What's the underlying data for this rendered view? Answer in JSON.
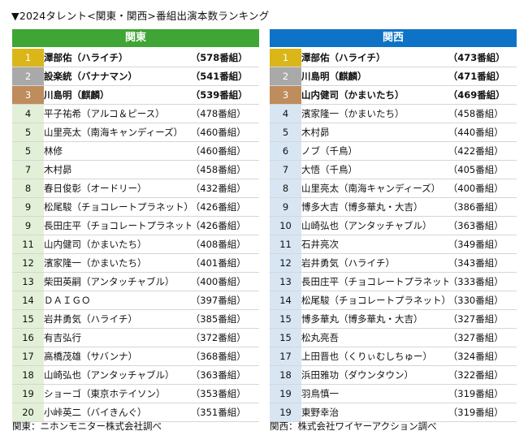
{
  "title": "▼2024タレント<関東・関西>番組出演本数ランキング",
  "kanto": {
    "header": "関東",
    "rows": [
      {
        "rank": "1",
        "name": "澤部佑（ハライチ）",
        "count": "（578番組）"
      },
      {
        "rank": "2",
        "name": "設楽統（バナナマン）",
        "count": "（541番組）"
      },
      {
        "rank": "3",
        "name": "川島明（麒麟）",
        "count": "（539番組）"
      },
      {
        "rank": "4",
        "name": "平子祐希（アルコ＆ピース）",
        "count": "（478番組）"
      },
      {
        "rank": "5",
        "name": "山里亮太（南海キャンディーズ）",
        "count": "（460番組）"
      },
      {
        "rank": "5",
        "name": "林修",
        "count": "（460番組）"
      },
      {
        "rank": "7",
        "name": "木村昴",
        "count": "（458番組）"
      },
      {
        "rank": "8",
        "name": "春日俊彰（オードリー）",
        "count": "（432番組）"
      },
      {
        "rank": "9",
        "name": "松尾駿（チョコレートプラネット）",
        "count": "（426番組）"
      },
      {
        "rank": "9",
        "name": "長田庄平（チョコレートプラネット）",
        "count": "（426番組）"
      },
      {
        "rank": "11",
        "name": "山内健司（かまいたち）",
        "count": "（408番組）"
      },
      {
        "rank": "12",
        "name": "濱家隆一（かまいたち）",
        "count": "（401番組）"
      },
      {
        "rank": "13",
        "name": "柴田英嗣（アンタッチャブル）",
        "count": "（400番組）"
      },
      {
        "rank": "14",
        "name": "ＤＡＩＧＯ",
        "count": "（397番組）"
      },
      {
        "rank": "15",
        "name": "岩井勇気（ハライチ）",
        "count": "（385番組）"
      },
      {
        "rank": "16",
        "name": "有吉弘行",
        "count": "（372番組）"
      },
      {
        "rank": "17",
        "name": "高橋茂雄（サバンナ）",
        "count": "（368番組）"
      },
      {
        "rank": "18",
        "name": "山崎弘也（アンタッチャブル）",
        "count": "（363番組）"
      },
      {
        "rank": "19",
        "name": "ショーゴ（東京ホテイソン）",
        "count": "（353番組）"
      },
      {
        "rank": "20",
        "name": "小峠英二（バイきんぐ）",
        "count": "（351番組）"
      }
    ],
    "note": "関東：ニホンモニター株式会社調べ"
  },
  "kansai": {
    "header": "関西",
    "rows": [
      {
        "rank": "1",
        "name": "澤部佑（ハライチ）",
        "count": "（473番組）"
      },
      {
        "rank": "2",
        "name": "川島明（麒麟）",
        "count": "（471番組）"
      },
      {
        "rank": "3",
        "name": "山内健司（かまいたち）",
        "count": "（469番組）"
      },
      {
        "rank": "4",
        "name": "濱家隆一（かまいたち）",
        "count": "（458番組）"
      },
      {
        "rank": "5",
        "name": "木村昴",
        "count": "（440番組）"
      },
      {
        "rank": "6",
        "name": "ノブ（千鳥）",
        "count": "（422番組）"
      },
      {
        "rank": "7",
        "name": "大悟（千鳥）",
        "count": "（405番組）"
      },
      {
        "rank": "8",
        "name": "山里亮太（南海キャンディーズ）",
        "count": "（400番組）"
      },
      {
        "rank": "9",
        "name": "博多大吉（博多華丸・大吉）",
        "count": "（386番組）"
      },
      {
        "rank": "10",
        "name": "山崎弘也（アンタッチャブル）",
        "count": "（363番組）"
      },
      {
        "rank": "11",
        "name": "石井亮次",
        "count": "（349番組）"
      },
      {
        "rank": "12",
        "name": "岩井勇気（ハライチ）",
        "count": "（343番組）"
      },
      {
        "rank": "13",
        "name": "長田庄平（チョコレートプラネット）",
        "count": "（333番組）"
      },
      {
        "rank": "14",
        "name": "松尾駿（チョコレートプラネット）",
        "count": "（330番組）"
      },
      {
        "rank": "15",
        "name": "博多華丸（博多華丸・大吉）",
        "count": "（327番組）"
      },
      {
        "rank": "15",
        "name": "松丸亮吾",
        "count": "（327番組）"
      },
      {
        "rank": "17",
        "name": "上田晋也（くりぃむしちゅー）",
        "count": "（324番組）"
      },
      {
        "rank": "18",
        "name": "浜田雅功（ダウンタウン）",
        "count": "（322番組）"
      },
      {
        "rank": "19",
        "name": "羽鳥慎一",
        "count": "（319番組）"
      },
      {
        "rank": "19",
        "name": "東野幸治",
        "count": "（319番組）"
      }
    ],
    "note": "関西：株式会社ワイヤーアクション調べ"
  }
}
